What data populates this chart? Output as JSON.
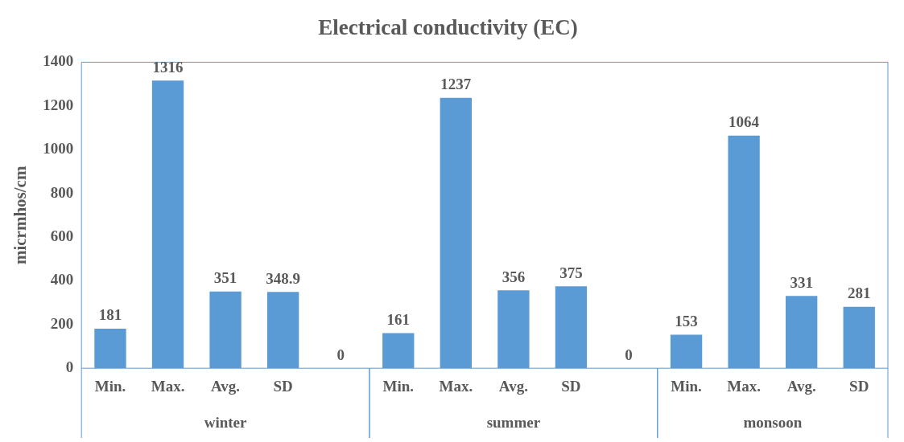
{
  "chart_data": {
    "type": "bar",
    "title": "Electrical conductivity (EC)",
    "ylabel": "micrmhos/cm",
    "categories": [
      "Min.",
      "Max.",
      "Avg.",
      "SD",
      null,
      "Min.",
      "Max.",
      "Avg.",
      "SD",
      null,
      "Min.",
      "Max.",
      "Avg.",
      "SD"
    ],
    "values": [
      181,
      1316,
      351,
      348.9,
      0,
      161,
      1237,
      356,
      375,
      0,
      153,
      1064,
      331,
      281
    ],
    "color": "#5b9bd5",
    "ylim": [
      0,
      1400
    ],
    "yticks": [
      0,
      200,
      400,
      600,
      800,
      1000,
      1200,
      1400
    ],
    "annotations": [
      "winter",
      "summer",
      "monsoon"
    ],
    "data_labels": true,
    "grid": false,
    "legend": false
  }
}
